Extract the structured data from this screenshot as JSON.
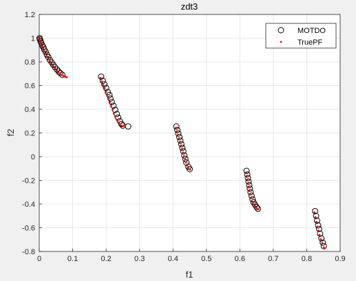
{
  "chart_data": {
    "type": "scatter",
    "title": "zdt3",
    "xlabel": "f1",
    "ylabel": "f2",
    "xlim": [
      0,
      0.9
    ],
    "ylim": [
      -0.8,
      1.2
    ],
    "xticks": [
      0,
      0.1,
      0.2,
      0.3,
      0.4,
      0.5,
      0.6,
      0.7,
      0.8,
      0.9
    ],
    "yticks": [
      -0.8,
      -0.6,
      -0.4,
      -0.2,
      0,
      0.2,
      0.4,
      0.6,
      0.8,
      1,
      1.2
    ],
    "xtick_labels": [
      "0",
      "0.1",
      "0.2",
      "0.3",
      "0.4",
      "0.5",
      "0.6",
      "0.7",
      "0.8",
      "0.9"
    ],
    "ytick_labels": [
      "-0.8",
      "-0.6",
      "-0.4",
      "-0.2",
      "0",
      "0.2",
      "0.4",
      "0.6",
      "0.8",
      "1",
      "1.2"
    ],
    "grid": true,
    "legend": {
      "placement": "top-right",
      "entries": [
        "MOTDO",
        "TruePF"
      ]
    },
    "series": [
      {
        "name": "MOTDO",
        "marker": "circle-open",
        "color": "#000000",
        "points": [
          [
            0.001,
            1.0
          ],
          [
            0.002,
            0.99
          ],
          [
            0.004,
            0.975
          ],
          [
            0.006,
            0.96
          ],
          [
            0.009,
            0.94
          ],
          [
            0.012,
            0.925
          ],
          [
            0.015,
            0.905
          ],
          [
            0.019,
            0.885
          ],
          [
            0.023,
            0.86
          ],
          [
            0.027,
            0.84
          ],
          [
            0.032,
            0.815
          ],
          [
            0.037,
            0.795
          ],
          [
            0.042,
            0.775
          ],
          [
            0.047,
            0.755
          ],
          [
            0.053,
            0.735
          ],
          [
            0.058,
            0.718
          ],
          [
            0.063,
            0.705
          ],
          [
            0.069,
            0.69
          ],
          [
            0.185,
            0.675
          ],
          [
            0.19,
            0.64
          ],
          [
            0.195,
            0.61
          ],
          [
            0.2,
            0.58
          ],
          [
            0.205,
            0.545
          ],
          [
            0.21,
            0.52
          ],
          [
            0.213,
            0.49
          ],
          [
            0.217,
            0.46
          ],
          [
            0.222,
            0.43
          ],
          [
            0.227,
            0.395
          ],
          [
            0.232,
            0.36
          ],
          [
            0.236,
            0.33
          ],
          [
            0.241,
            0.3
          ],
          [
            0.246,
            0.275
          ],
          [
            0.25,
            0.262
          ],
          [
            0.266,
            0.255
          ],
          [
            0.41,
            0.255
          ],
          [
            0.413,
            0.225
          ],
          [
            0.416,
            0.195
          ],
          [
            0.419,
            0.165
          ],
          [
            0.422,
            0.135
          ],
          [
            0.425,
            0.105
          ],
          [
            0.428,
            0.075
          ],
          [
            0.431,
            0.045
          ],
          [
            0.434,
            0.01
          ],
          [
            0.437,
            -0.02
          ],
          [
            0.44,
            -0.05
          ],
          [
            0.446,
            -0.085
          ],
          [
            0.45,
            -0.105
          ],
          [
            0.62,
            -0.12
          ],
          [
            0.622,
            -0.15
          ],
          [
            0.624,
            -0.18
          ],
          [
            0.626,
            -0.21
          ],
          [
            0.628,
            -0.24
          ],
          [
            0.63,
            -0.27
          ],
          [
            0.632,
            -0.3
          ],
          [
            0.635,
            -0.33
          ],
          [
            0.638,
            -0.36
          ],
          [
            0.641,
            -0.385
          ],
          [
            0.645,
            -0.405
          ],
          [
            0.65,
            -0.425
          ],
          [
            0.654,
            -0.44
          ],
          [
            0.825,
            -0.46
          ],
          [
            0.828,
            -0.5
          ],
          [
            0.831,
            -0.54
          ],
          [
            0.834,
            -0.58
          ],
          [
            0.837,
            -0.61
          ],
          [
            0.84,
            -0.65
          ],
          [
            0.844,
            -0.69
          ],
          [
            0.848,
            -0.725
          ],
          [
            0.851,
            -0.755
          ]
        ]
      },
      {
        "name": "TruePF",
        "marker": "dot",
        "color": "#ff0000",
        "points": [
          [
            0.0,
            1.0
          ],
          [
            0.002,
            0.985
          ],
          [
            0.004,
            0.97
          ],
          [
            0.006,
            0.95
          ],
          [
            0.009,
            0.93
          ],
          [
            0.012,
            0.91
          ],
          [
            0.016,
            0.89
          ],
          [
            0.02,
            0.87
          ],
          [
            0.024,
            0.845
          ],
          [
            0.028,
            0.825
          ],
          [
            0.033,
            0.8
          ],
          [
            0.038,
            0.78
          ],
          [
            0.043,
            0.76
          ],
          [
            0.048,
            0.74
          ],
          [
            0.053,
            0.725
          ],
          [
            0.058,
            0.71
          ],
          [
            0.063,
            0.698
          ],
          [
            0.068,
            0.688
          ],
          [
            0.073,
            0.68
          ],
          [
            0.078,
            0.673
          ],
          [
            0.082,
            0.67
          ],
          [
            0.183,
            0.665
          ],
          [
            0.187,
            0.635
          ],
          [
            0.191,
            0.605
          ],
          [
            0.195,
            0.575
          ],
          [
            0.199,
            0.545
          ],
          [
            0.203,
            0.515
          ],
          [
            0.207,
            0.485
          ],
          [
            0.211,
            0.455
          ],
          [
            0.215,
            0.425
          ],
          [
            0.219,
            0.395
          ],
          [
            0.223,
            0.365
          ],
          [
            0.227,
            0.338
          ],
          [
            0.231,
            0.312
          ],
          [
            0.236,
            0.29
          ],
          [
            0.241,
            0.272
          ],
          [
            0.246,
            0.261
          ],
          [
            0.251,
            0.258
          ],
          [
            0.257,
            0.258
          ],
          [
            0.409,
            0.245
          ],
          [
            0.412,
            0.215
          ],
          [
            0.415,
            0.185
          ],
          [
            0.418,
            0.155
          ],
          [
            0.421,
            0.125
          ],
          [
            0.424,
            0.095
          ],
          [
            0.427,
            0.065
          ],
          [
            0.43,
            0.035
          ],
          [
            0.433,
            0.005
          ],
          [
            0.436,
            -0.025
          ],
          [
            0.439,
            -0.05
          ],
          [
            0.442,
            -0.075
          ],
          [
            0.446,
            -0.095
          ],
          [
            0.451,
            -0.11
          ],
          [
            0.619,
            -0.14
          ],
          [
            0.621,
            -0.17
          ],
          [
            0.623,
            -0.2
          ],
          [
            0.625,
            -0.23
          ],
          [
            0.627,
            -0.26
          ],
          [
            0.629,
            -0.29
          ],
          [
            0.631,
            -0.32
          ],
          [
            0.634,
            -0.35
          ],
          [
            0.638,
            -0.38
          ],
          [
            0.642,
            -0.4
          ],
          [
            0.646,
            -0.42
          ],
          [
            0.651,
            -0.435
          ],
          [
            0.655,
            -0.445
          ],
          [
            0.823,
            -0.47
          ],
          [
            0.826,
            -0.51
          ],
          [
            0.829,
            -0.55
          ],
          [
            0.832,
            -0.59
          ],
          [
            0.835,
            -0.625
          ],
          [
            0.838,
            -0.66
          ],
          [
            0.842,
            -0.695
          ],
          [
            0.846,
            -0.73
          ],
          [
            0.851,
            -0.765
          ],
          [
            0.853,
            -0.775
          ]
        ]
      }
    ]
  }
}
